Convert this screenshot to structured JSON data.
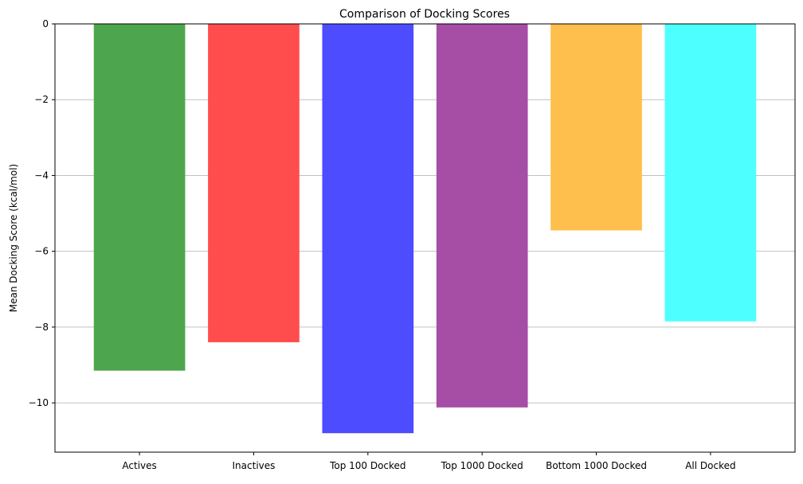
{
  "chart_data": {
    "type": "bar",
    "title": "Comparison of Docking Scores",
    "xlabel": "",
    "ylabel": "Mean Docking Score (kcal/mol)",
    "categories": [
      "Actives",
      "Inactives",
      "Top 100 Docked",
      "Top 1000 Docked",
      "Bottom 1000 Docked",
      "All Docked"
    ],
    "values": [
      -9.15,
      -8.4,
      -10.8,
      -10.12,
      -5.45,
      -7.85
    ],
    "colors": [
      "#4da64d",
      "#ff4d4d",
      "#4d4dff",
      "#a64da6",
      "#ffbf4d",
      "#4dffff"
    ],
    "ylim": [
      -11.3,
      0
    ],
    "yticks": [
      0,
      -2,
      -4,
      -6,
      -8,
      -10
    ],
    "ytick_labels": [
      "0",
      "−2",
      "−4",
      "−6",
      "−8",
      "−10"
    ],
    "grid": "y-axis only",
    "legend": "none"
  }
}
